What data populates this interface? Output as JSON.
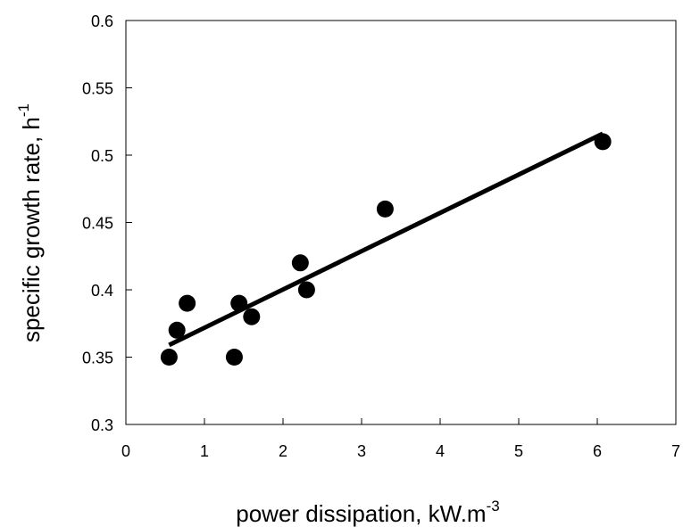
{
  "chart_data": {
    "type": "scatter",
    "title": "",
    "xlabel": "power dissipation, kW.m",
    "xlabel_superscript": "-3",
    "ylabel": "specific growth rate, h",
    "ylabel_superscript": "-1",
    "xlim": [
      0,
      7
    ],
    "ylim": [
      0.3,
      0.6
    ],
    "x_ticks": [
      0,
      1,
      2,
      3,
      4,
      5,
      6,
      7
    ],
    "y_ticks": [
      0.3,
      0.35,
      0.4,
      0.45,
      0.5,
      0.55,
      0.6
    ],
    "x_tick_labels": [
      "0",
      "1",
      "2",
      "3",
      "4",
      "5",
      "6",
      "7"
    ],
    "y_tick_labels": [
      "0.3",
      "0.35",
      "0.4",
      "0.45",
      "0.5",
      "0.55",
      "0.6"
    ],
    "grid": false,
    "legend": "none",
    "series": [
      {
        "x": [
          0.55,
          0.65,
          0.78,
          1.38,
          1.44,
          1.6,
          2.22,
          2.3,
          3.3,
          6.07
        ],
        "y": [
          0.35,
          0.37,
          0.39,
          0.35,
          0.39,
          0.38,
          0.42,
          0.4,
          0.46,
          0.51
        ],
        "marker": "filled-circle",
        "color": "#000000"
      }
    ],
    "trendline": {
      "x": [
        0.55,
        6.07
      ],
      "y": [
        0.359,
        0.516
      ],
      "color": "#000000"
    }
  }
}
